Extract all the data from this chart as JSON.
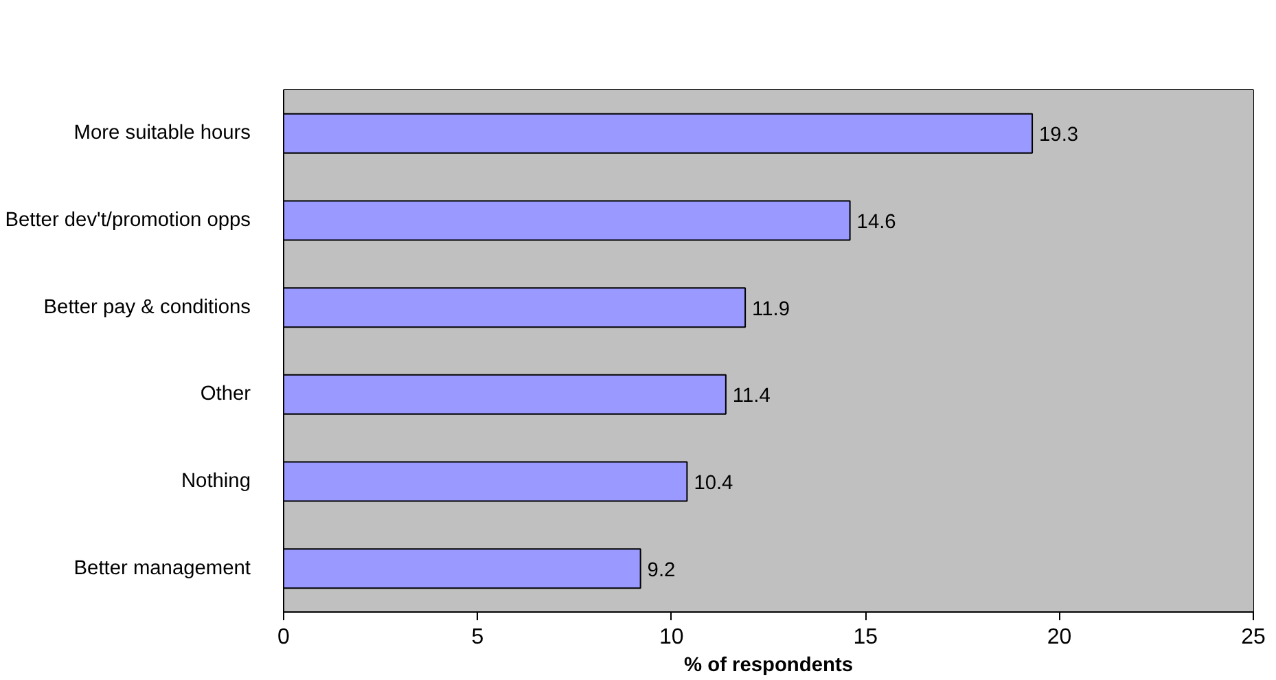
{
  "chart_data": {
    "type": "bar",
    "orientation": "horizontal",
    "xlabel": "% of respondents",
    "categories": [
      "More suitable hours",
      "Better dev't/promotion opps",
      "Better pay & conditions",
      "Other",
      "Nothing",
      "Better management"
    ],
    "values": [
      19.3,
      14.6,
      11.9,
      11.4,
      10.4,
      9.2
    ],
    "color": "#9999ff",
    "data_labels": true,
    "xlim": [
      0,
      25
    ],
    "xticks": [
      0,
      5,
      10,
      15,
      20,
      25
    ]
  }
}
